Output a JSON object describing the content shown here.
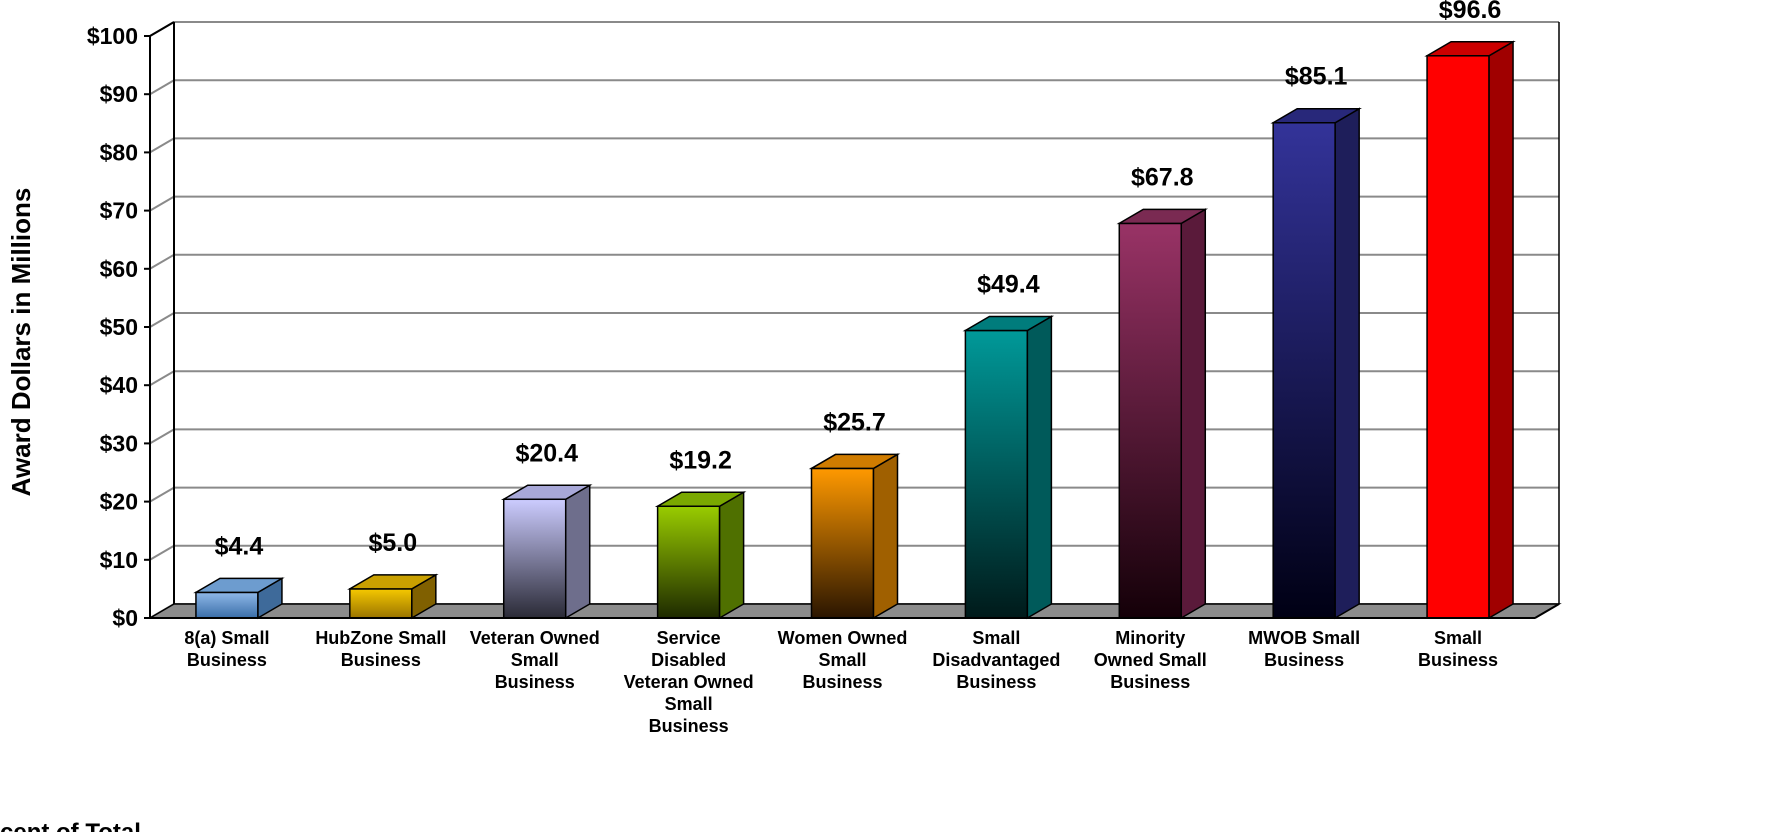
{
  "chart_data": {
    "type": "bar",
    "ylabel": "Award Dollars in Millions",
    "xlabel": "",
    "ylim": [
      0,
      100
    ],
    "ytick_step": 10,
    "ytick_labels": [
      "$0",
      "$10",
      "$20",
      "$30",
      "$40",
      "$50",
      "$60",
      "$70",
      "$80",
      "$90",
      "$100"
    ],
    "grid": true,
    "three_d": true,
    "categories": [
      [
        "8(a) Small",
        "Business"
      ],
      [
        "HubZone Small",
        "Business"
      ],
      [
        "Veteran Owned",
        "Small",
        "Business"
      ],
      [
        "Service",
        "Disabled",
        "Veteran Owned",
        "Small",
        "Business"
      ],
      [
        "Women Owned",
        "Small",
        "Business"
      ],
      [
        "Small",
        "Disadvantaged",
        "Business"
      ],
      [
        "Minority",
        "Owned Small",
        "Business"
      ],
      [
        "MWOB Small",
        "Business"
      ],
      [
        "Small",
        "Business"
      ]
    ],
    "values": [
      4.4,
      5.0,
      20.4,
      19.2,
      25.7,
      49.4,
      67.8,
      85.1,
      96.6
    ],
    "data_labels": [
      "$4.4",
      "$5.0",
      "$20.4",
      "$19.2",
      "$25.7",
      "$49.4",
      "$67.8",
      "$85.1",
      "$96.6"
    ],
    "colors": [
      {
        "front_top": "#8fb8e8",
        "front_bottom": "#3a6ea8",
        "side": "#3e6a9a",
        "top": "#6d9ccf"
      },
      {
        "front_top": "#f5c800",
        "front_bottom": "#9a7400",
        "side": "#806000",
        "top": "#c9a000"
      },
      {
        "front_top": "#ccccff",
        "front_bottom": "#2a2a36",
        "side": "#6e6e8c",
        "top": "#a8a8d8"
      },
      {
        "front_top": "#99cc00",
        "front_bottom": "#1e2a00",
        "side": "#4f7000",
        "top": "#7aa800"
      },
      {
        "front_top": "#ff9900",
        "front_bottom": "#2a1500",
        "side": "#a06000",
        "top": "#d07c00"
      },
      {
        "front_top": "#009999",
        "front_bottom": "#001a1a",
        "side": "#005a5a",
        "top": "#007c7c"
      },
      {
        "front_top": "#993366",
        "front_bottom": "#140008",
        "side": "#5a1a3a",
        "top": "#7a2a52"
      },
      {
        "front_top": "#333399",
        "front_bottom": "#000014",
        "side": "#1e1e5a",
        "top": "#28287a"
      },
      {
        "front_top": "#ff0000",
        "front_bottom": "#ff0000",
        "side": "#a00000",
        "top": "#cc0000"
      }
    ]
  },
  "footnote": "cent of Total"
}
